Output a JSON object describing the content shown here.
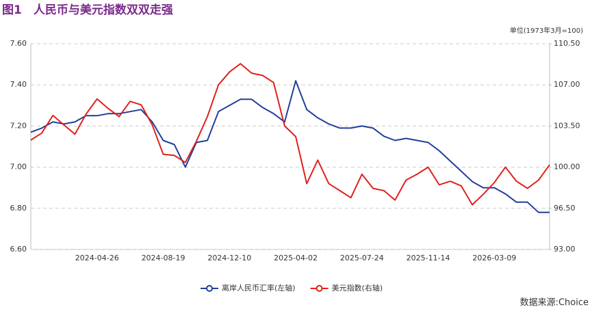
{
  "chart_data": {
    "type": "line",
    "title": "图1　人民币与美元指数双双走强",
    "unit_label": "单位(1973年3月=100)",
    "source": "数据来源:Choice",
    "categories": [
      null,
      null,
      null,
      null,
      null,
      null,
      "2024-04-26",
      null,
      null,
      null,
      null,
      null,
      "2024-08-19",
      null,
      null,
      null,
      null,
      null,
      "2024-12-10",
      null,
      null,
      null,
      null,
      null,
      "2025-04-02",
      null,
      null,
      null,
      null,
      null,
      "2025-07-24",
      null,
      null,
      null,
      null,
      null,
      "2025-11-14",
      null,
      null,
      null,
      null,
      null,
      "2026-03-09",
      null,
      null,
      null,
      null,
      null
    ],
    "series": [
      {
        "name": "离岸人民币汇率(左轴)",
        "color": "#1f3f99",
        "axis": "y",
        "values": [
          7.17,
          7.19,
          7.22,
          7.21,
          7.22,
          7.25,
          7.25,
          7.26,
          7.26,
          7.27,
          7.28,
          7.22,
          7.13,
          7.11,
          7.0,
          7.12,
          7.13,
          7.27,
          7.3,
          7.33,
          7.33,
          7.29,
          7.26,
          7.22,
          7.42,
          7.28,
          7.24,
          7.21,
          7.19,
          7.19,
          7.2,
          7.19,
          7.15,
          7.13,
          7.14,
          7.13,
          7.12,
          7.08,
          7.03,
          6.98,
          6.93,
          6.9,
          6.9,
          6.87,
          6.83,
          6.83,
          6.78,
          6.78
        ]
      },
      {
        "name": "美元指数(右轴)",
        "color": "#e0201b",
        "axis": "y2",
        "values": [
          102.3,
          102.9,
          104.4,
          103.6,
          102.8,
          104.5,
          105.8,
          105.0,
          104.3,
          105.6,
          105.3,
          103.6,
          101.1,
          101.0,
          100.4,
          102.2,
          104.3,
          107.0,
          108.1,
          108.8,
          108.0,
          107.8,
          107.2,
          103.5,
          102.6,
          98.6,
          100.6,
          98.6,
          98.0,
          97.4,
          99.4,
          98.2,
          98.0,
          97.2,
          98.9,
          99.4,
          100.0,
          98.5,
          98.8,
          98.4,
          96.8,
          97.7,
          98.7,
          100.0,
          98.8,
          98.2,
          98.9,
          100.2
        ]
      }
    ],
    "ylim": [
      6.6,
      7.6
    ],
    "yticks": [
      {
        "value": 6.6,
        "label": "6.60"
      },
      {
        "value": 6.8,
        "label": "6.80"
      },
      {
        "value": 7.0,
        "label": "7.00"
      },
      {
        "value": 7.2,
        "label": "7.20"
      },
      {
        "value": 7.4,
        "label": "7.40"
      },
      {
        "value": 7.6,
        "label": "7.60"
      }
    ],
    "y2lim": [
      93,
      110.5
    ],
    "y2ticks": [
      {
        "value": 93,
        "label": "93.00"
      },
      {
        "value": 96.5,
        "label": "96.50"
      },
      {
        "value": 100,
        "label": "100.00"
      },
      {
        "value": 103.5,
        "label": "103.50"
      },
      {
        "value": 107,
        "label": "107.00"
      },
      {
        "value": 110.5,
        "label": "110.50"
      }
    ],
    "grid": true
  }
}
